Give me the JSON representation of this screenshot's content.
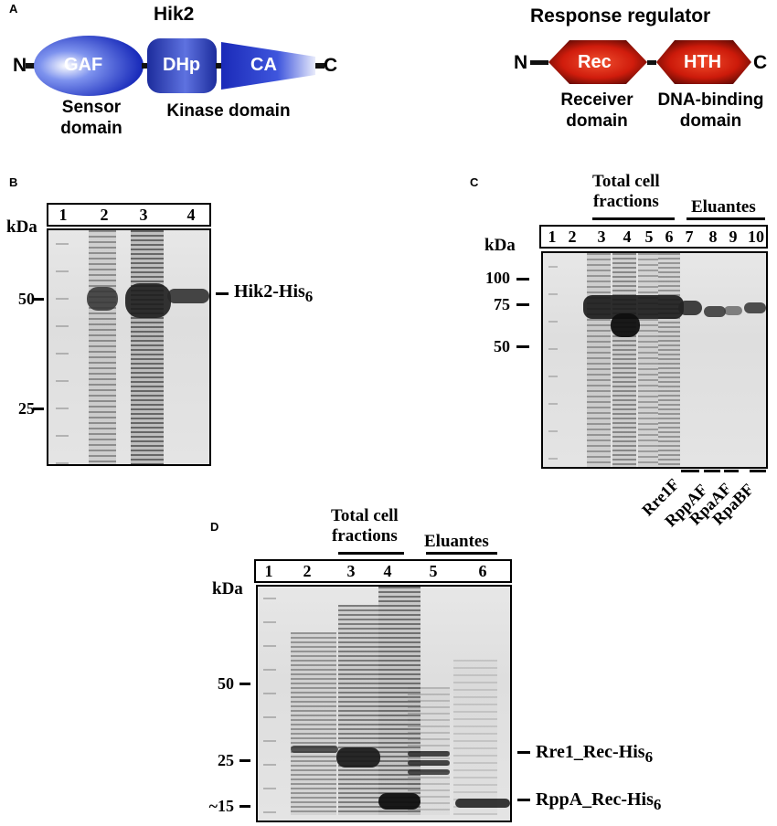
{
  "panel_a": {
    "letter": "A",
    "hik2": {
      "title": "Hik2",
      "n_term": "N",
      "c_term": "C",
      "domains": [
        "GAF",
        "DHp",
        "CA"
      ],
      "sensor_label": "Sensor\ndomain",
      "kinase_label": "Kinase domain"
    },
    "rr": {
      "title": "Response regulator",
      "n_term": "N",
      "c_term": "C",
      "domains": [
        "Rec",
        "HTH"
      ],
      "receiver_label": "Receiver\ndomain",
      "dna_label": "DNA-binding\ndomain"
    }
  },
  "panel_b": {
    "letter": "B",
    "kda": "kDa",
    "lanes": [
      "1",
      "2",
      "3",
      "4"
    ],
    "markers": [
      "50",
      "25"
    ],
    "band_label": "Hik2-His",
    "band_sub": "6"
  },
  "panel_c": {
    "letter": "C",
    "kda": "kDa",
    "header_total": "Total cell\nfractions",
    "header_eluantes": "Eluantes",
    "lanes": [
      "1",
      "2",
      "3",
      "4",
      "5",
      "6",
      "7",
      "8",
      "9",
      "10"
    ],
    "markers": [
      "100",
      "75",
      "50"
    ],
    "fractions": [
      "Rre1F",
      "RppAF",
      "RpaAF",
      "RpaBF"
    ]
  },
  "panel_d": {
    "letter": "D",
    "kda": "kDa",
    "header_total": "Total cell\nfractions",
    "header_eluantes": "Eluantes",
    "lanes": [
      "1",
      "2",
      "3",
      "4",
      "5",
      "6"
    ],
    "markers": [
      "50",
      "25",
      "~15"
    ],
    "band1_label": "Rre1_Rec-His",
    "band1_sub": "6",
    "band2_label": "RppA_Rec-His",
    "band2_sub": "6"
  },
  "colors": {
    "hik2_blue": "#1f3fd6",
    "rr_red": "#d42010",
    "gel_bg": "#e3e3e3",
    "band_dark": "#202020"
  }
}
